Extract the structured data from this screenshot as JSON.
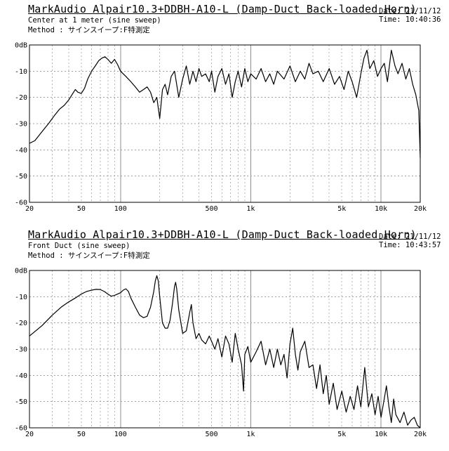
{
  "chart_data": [
    {
      "type": "line",
      "title": "MarkAudio Alpair10.3+DDBH-A10-L (Damp-Duct Back-loaded Horn)",
      "subtitle": "Center at 1 meter (sine sweep)",
      "method": "Method : サインスイープ:F特測定",
      "date": "Date: 21/11/12",
      "time": "Time: 10:40:36",
      "xscale": "log",
      "xlim": [
        20,
        20000
      ],
      "ylim": [
        -60,
        0
      ],
      "grid": true,
      "x_tick_labels": [
        "20",
        "50",
        "100",
        "500",
        "1k",
        "5k",
        "10k",
        "20k"
      ],
      "y_tick_labels": [
        "0dB",
        "-10",
        "-20",
        "-30",
        "-40",
        "-50",
        "-60"
      ],
      "series": [
        {
          "values": [
            [
              20,
              -37.5
            ],
            [
              22,
              -36.5
            ],
            [
              25,
              -33
            ],
            [
              28,
              -30
            ],
            [
              31,
              -27
            ],
            [
              34,
              -24.5
            ],
            [
              37,
              -23
            ],
            [
              40,
              -21
            ],
            [
              43,
              -18.5
            ],
            [
              45,
              -17
            ],
            [
              47,
              -18
            ],
            [
              50,
              -18.5
            ],
            [
              53,
              -16.5
            ],
            [
              56,
              -13
            ],
            [
              60,
              -10
            ],
            [
              64,
              -8
            ],
            [
              68,
              -6
            ],
            [
              72,
              -5
            ],
            [
              76,
              -4.5
            ],
            [
              80,
              -5.5
            ],
            [
              85,
              -7
            ],
            [
              90,
              -5.5
            ],
            [
              95,
              -7.5
            ],
            [
              100,
              -10
            ],
            [
              110,
              -12
            ],
            [
              120,
              -14
            ],
            [
              130,
              -16
            ],
            [
              140,
              -18
            ],
            [
              150,
              -17
            ],
            [
              160,
              -16
            ],
            [
              170,
              -18
            ],
            [
              180,
              -22
            ],
            [
              190,
              -20
            ],
            [
              200,
              -28
            ],
            [
              210,
              -17
            ],
            [
              220,
              -15
            ],
            [
              230,
              -19
            ],
            [
              245,
              -12
            ],
            [
              260,
              -10
            ],
            [
              280,
              -20
            ],
            [
              300,
              -13
            ],
            [
              320,
              -8
            ],
            [
              340,
              -15
            ],
            [
              360,
              -10
            ],
            [
              380,
              -14
            ],
            [
              400,
              -9
            ],
            [
              420,
              -12
            ],
            [
              450,
              -11
            ],
            [
              480,
              -14
            ],
            [
              500,
              -10
            ],
            [
              530,
              -18
            ],
            [
              560,
              -12
            ],
            [
              600,
              -9
            ],
            [
              640,
              -15
            ],
            [
              680,
              -11
            ],
            [
              720,
              -20
            ],
            [
              760,
              -14
            ],
            [
              800,
              -10
            ],
            [
              850,
              -16
            ],
            [
              900,
              -9
            ],
            [
              950,
              -14
            ],
            [
              1000,
              -11
            ],
            [
              1100,
              -13
            ],
            [
              1200,
              -9
            ],
            [
              1300,
              -14
            ],
            [
              1400,
              -11
            ],
            [
              1500,
              -15
            ],
            [
              1600,
              -10
            ],
            [
              1800,
              -13
            ],
            [
              2000,
              -8
            ],
            [
              2200,
              -14
            ],
            [
              2400,
              -10
            ],
            [
              2600,
              -13
            ],
            [
              2800,
              -7
            ],
            [
              3000,
              -11
            ],
            [
              3300,
              -10
            ],
            [
              3600,
              -14
            ],
            [
              4000,
              -9
            ],
            [
              4400,
              -15
            ],
            [
              4800,
              -12
            ],
            [
              5200,
              -17
            ],
            [
              5600,
              -10
            ],
            [
              6000,
              -14
            ],
            [
              6500,
              -20
            ],
            [
              7000,
              -11
            ],
            [
              7400,
              -5
            ],
            [
              7800,
              -2
            ],
            [
              8200,
              -9
            ],
            [
              8800,
              -6
            ],
            [
              9400,
              -12
            ],
            [
              10000,
              -9
            ],
            [
              10600,
              -7
            ],
            [
              11200,
              -14
            ],
            [
              12000,
              -2
            ],
            [
              12800,
              -8
            ],
            [
              13500,
              -11
            ],
            [
              14500,
              -7
            ],
            [
              15500,
              -13
            ],
            [
              16500,
              -9
            ],
            [
              17500,
              -15
            ],
            [
              18500,
              -19
            ],
            [
              19500,
              -25
            ],
            [
              20000,
              -43
            ]
          ]
        }
      ]
    },
    {
      "type": "line",
      "title": "MarkAudio Alpair10.3+DDBH-A10-L (Damp-Duct Back-loaded Horn)",
      "subtitle": "Front Duct (sine sweep)",
      "method": "Method : サインスイープ:F特測定",
      "date": "Date: 21/11/12",
      "time": "Time: 10:43:57",
      "xscale": "log",
      "xlim": [
        20,
        20000
      ],
      "ylim": [
        -60,
        0
      ],
      "grid": true,
      "x_tick_labels": [
        "20",
        "50",
        "100",
        "500",
        "1k",
        "5k",
        "10k",
        "20k"
      ],
      "y_tick_labels": [
        "0dB",
        "-10",
        "-20",
        "-30",
        "-40",
        "-50",
        "-60"
      ],
      "series": [
        {
          "values": [
            [
              20,
              -25
            ],
            [
              25,
              -21
            ],
            [
              30,
              -17
            ],
            [
              35,
              -14
            ],
            [
              40,
              -12
            ],
            [
              45,
              -10.5
            ],
            [
              50,
              -9
            ],
            [
              55,
              -8
            ],
            [
              60,
              -7.5
            ],
            [
              65,
              -7.2
            ],
            [
              70,
              -7.3
            ],
            [
              75,
              -8
            ],
            [
              80,
              -9
            ],
            [
              85,
              -9.8
            ],
            [
              90,
              -9.5
            ],
            [
              95,
              -9
            ],
            [
              100,
              -8.5
            ],
            [
              105,
              -7.5
            ],
            [
              110,
              -7
            ],
            [
              115,
              -8
            ],
            [
              120,
              -10.5
            ],
            [
              130,
              -14
            ],
            [
              140,
              -17
            ],
            [
              150,
              -18
            ],
            [
              160,
              -17.5
            ],
            [
              170,
              -14
            ],
            [
              180,
              -8
            ],
            [
              185,
              -4
            ],
            [
              190,
              -2
            ],
            [
              195,
              -4
            ],
            [
              200,
              -10
            ],
            [
              210,
              -20
            ],
            [
              220,
              -22
            ],
            [
              230,
              -22
            ],
            [
              240,
              -19
            ],
            [
              250,
              -13
            ],
            [
              260,
              -6
            ],
            [
              265,
              -4.5
            ],
            [
              270,
              -7
            ],
            [
              280,
              -15
            ],
            [
              300,
              -24
            ],
            [
              320,
              -23
            ],
            [
              340,
              -16
            ],
            [
              350,
              -13
            ],
            [
              360,
              -20
            ],
            [
              380,
              -26
            ],
            [
              400,
              -24
            ],
            [
              420,
              -26.5
            ],
            [
              450,
              -28
            ],
            [
              480,
              -25
            ],
            [
              500,
              -27
            ],
            [
              530,
              -30
            ],
            [
              560,
              -26
            ],
            [
              600,
              -33
            ],
            [
              640,
              -25
            ],
            [
              680,
              -28
            ],
            [
              720,
              -35
            ],
            [
              760,
              -24
            ],
            [
              800,
              -30
            ],
            [
              850,
              -36
            ],
            [
              880,
              -46
            ],
            [
              900,
              -32
            ],
            [
              950,
              -29
            ],
            [
              1000,
              -35
            ],
            [
              1100,
              -31
            ],
            [
              1200,
              -27
            ],
            [
              1300,
              -36
            ],
            [
              1400,
              -30
            ],
            [
              1500,
              -37
            ],
            [
              1600,
              -30
            ],
            [
              1700,
              -36
            ],
            [
              1800,
              -32
            ],
            [
              1900,
              -41
            ],
            [
              2000,
              -28
            ],
            [
              2100,
              -22
            ],
            [
              2200,
              -32
            ],
            [
              2300,
              -38
            ],
            [
              2400,
              -31
            ],
            [
              2600,
              -27
            ],
            [
              2800,
              -37
            ],
            [
              3000,
              -36
            ],
            [
              3200,
              -45
            ],
            [
              3400,
              -36
            ],
            [
              3600,
              -47
            ],
            [
              3800,
              -40
            ],
            [
              4000,
              -51
            ],
            [
              4300,
              -43
            ],
            [
              4600,
              -53
            ],
            [
              5000,
              -46
            ],
            [
              5400,
              -54
            ],
            [
              5800,
              -48
            ],
            [
              6200,
              -53
            ],
            [
              6600,
              -44
            ],
            [
              7000,
              -52
            ],
            [
              7500,
              -37
            ],
            [
              8000,
              -52
            ],
            [
              8500,
              -47
            ],
            [
              9000,
              -55
            ],
            [
              9500,
              -48
            ],
            [
              10000,
              -56
            ],
            [
              10500,
              -50
            ],
            [
              11000,
              -44
            ],
            [
              11500,
              -52
            ],
            [
              12000,
              -58
            ],
            [
              12500,
              -49
            ],
            [
              13000,
              -55
            ],
            [
              14000,
              -58
            ],
            [
              15000,
              -54
            ],
            [
              16000,
              -59
            ],
            [
              17000,
              -57
            ],
            [
              18000,
              -56
            ],
            [
              19000,
              -59
            ],
            [
              20000,
              -60
            ]
          ]
        }
      ]
    }
  ]
}
